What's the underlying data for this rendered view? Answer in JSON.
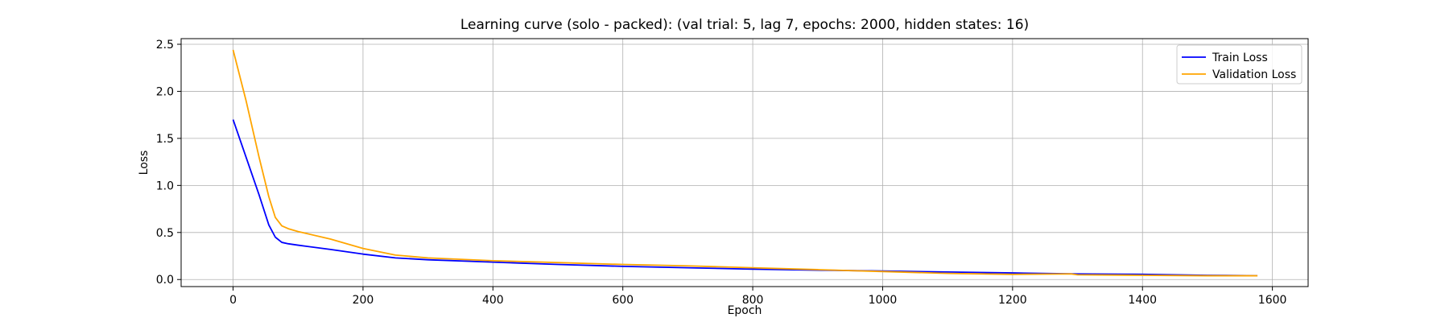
{
  "chart_data": {
    "type": "line",
    "title": "Learning curve (solo - packed): (val trial: 5, lag 7, epochs: 2000, hidden states: 16)",
    "xlabel": "Epoch",
    "ylabel": "Loss",
    "xlim": [
      -80,
      1655
    ],
    "ylim": [
      -0.075,
      2.56
    ],
    "xticks": [
      0,
      200,
      400,
      600,
      800,
      1000,
      1200,
      1400,
      1600
    ],
    "xtick_labels": [
      "0",
      "200",
      "400",
      "600",
      "800",
      "1000",
      "1200",
      "1400",
      "1600"
    ],
    "yticks": [
      0.0,
      0.5,
      1.0,
      1.5,
      2.0,
      2.5
    ],
    "ytick_labels": [
      "0.0",
      "0.5",
      "1.0",
      "1.5",
      "2.0",
      "2.5"
    ],
    "grid": true,
    "legend_position": "top-right",
    "series": [
      {
        "name": "Train Loss",
        "color": "#0000ff",
        "x": [
          0,
          20,
          40,
          55,
          65,
          75,
          85,
          100,
          150,
          200,
          250,
          300,
          400,
          500,
          600,
          700,
          800,
          900,
          1000,
          1100,
          1200,
          1300,
          1400,
          1500,
          1577
        ],
        "y": [
          1.7,
          1.3,
          0.9,
          0.58,
          0.45,
          0.395,
          0.38,
          0.365,
          0.32,
          0.27,
          0.23,
          0.21,
          0.185,
          0.16,
          0.14,
          0.125,
          0.11,
          0.1,
          0.09,
          0.08,
          0.07,
          0.06,
          0.055,
          0.045,
          0.04
        ]
      },
      {
        "name": "Validation Loss",
        "color": "#ffa500",
        "x": [
          0,
          20,
          40,
          55,
          65,
          75,
          85,
          100,
          150,
          200,
          250,
          300,
          400,
          500,
          600,
          700,
          800,
          900,
          1000,
          1100,
          1200,
          1290,
          1300,
          1400,
          1500,
          1577
        ],
        "y": [
          2.44,
          1.9,
          1.3,
          0.88,
          0.66,
          0.57,
          0.54,
          0.51,
          0.43,
          0.33,
          0.26,
          0.23,
          0.2,
          0.18,
          0.16,
          0.145,
          0.125,
          0.105,
          0.085,
          0.065,
          0.055,
          0.06,
          0.05,
          0.045,
          0.04,
          0.04
        ]
      }
    ]
  }
}
